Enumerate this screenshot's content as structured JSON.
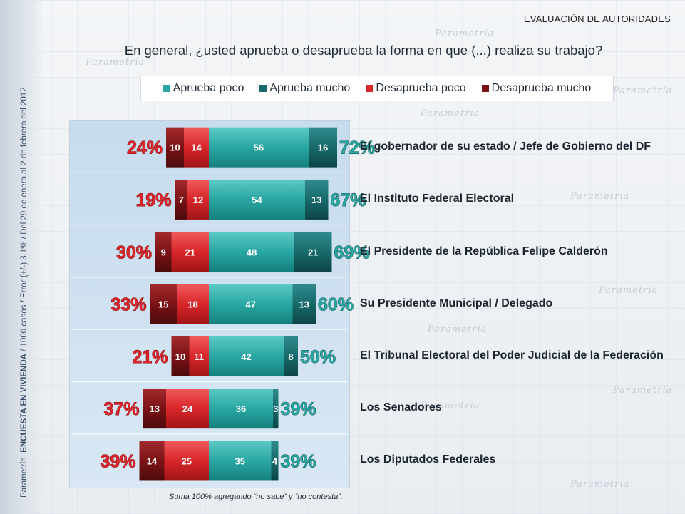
{
  "header": {
    "section_title": "EVALUACIÓN DE AUTORIDADES",
    "question": "En general, ¿usted aprueba o desaprueba la forma en que (...) realiza su trabajo?"
  },
  "side_caption": {
    "prefix": "Parametría; ",
    "bold": "ENCUESTA EN VIVIENDA",
    "suffix": " / 1000 casos / Error (+/-) 3.1% / Del 29 de enero al 2 de febrero del 2012"
  },
  "watermark": {
    "brand": "Parametría"
  },
  "footnote": "Suma 100%  agregando “no sabe” y “no contesta”.",
  "colors": {
    "aprueba_poco": "#2aa7a3",
    "aprueba_mucho": "#186a6c",
    "desaprueba_poco": "#d8262a",
    "desaprueba_mucho": "#7b1316",
    "approve_total_text": "#2aa7a3",
    "disapprove_total_text": "#e0262b"
  },
  "chart_data": {
    "type": "bar",
    "orientation": "horizontal-diverging",
    "stacked": true,
    "legend": [
      "Aprueba poco",
      "Aprueba mucho",
      "Desaprueba poco",
      "Desaprueba mucho"
    ],
    "legend_placement": "top",
    "categories": [
      "El gobernador de su estado / Jefe de Gobierno del DF",
      "El Instituto Federal Electoral",
      "El Presidente de la República Felipe Calderón",
      "Su Presidente Municipal / Delegado",
      "El Tribunal Electoral del Poder Judicial de la Federación",
      "Los Senadores",
      "Los Diputados Federales"
    ],
    "series": [
      {
        "name": "Aprueba poco",
        "values": [
          56,
          54,
          48,
          47,
          42,
          36,
          35
        ]
      },
      {
        "name": "Aprueba mucho",
        "values": [
          16,
          13,
          21,
          13,
          8,
          3,
          4
        ]
      },
      {
        "name": "Desaprueba poco",
        "values": [
          14,
          12,
          21,
          18,
          11,
          24,
          25
        ]
      },
      {
        "name": "Desaprueba mucho",
        "values": [
          10,
          7,
          9,
          15,
          10,
          13,
          14
        ]
      }
    ],
    "approve_totals": [
      "72%",
      "67%",
      "69%",
      "60%",
      "50%",
      "39%",
      "39%"
    ],
    "disapprove_totals": [
      "24%",
      "19%",
      "30%",
      "33%",
      "21%",
      "37%",
      "39%"
    ],
    "xlim": [
      -40,
      80
    ]
  }
}
